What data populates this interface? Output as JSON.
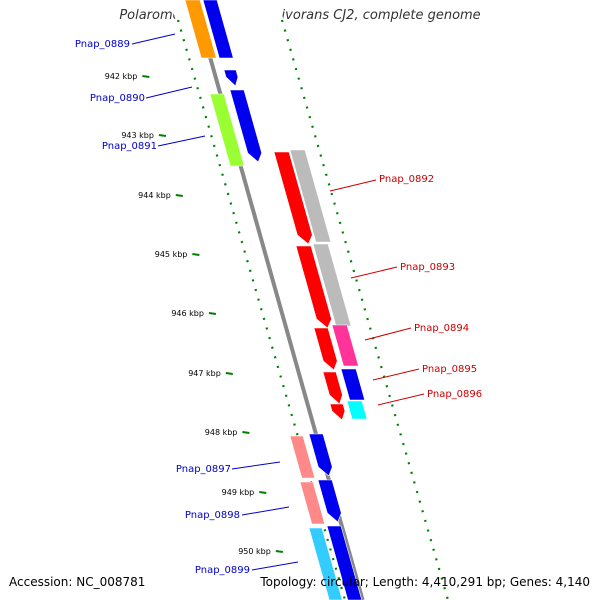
{
  "title": "Polaromonas naphthalenivorans CJ2, complete genome",
  "accession": "Accession: NC_008781",
  "topology": "Topology: circular; Length: 4,410,291 bp; Genes: 4,140",
  "ticks": [
    "942 kbp",
    "943 kbp",
    "944 kbp",
    "945 kbp",
    "946 kbp",
    "947 kbp",
    "948 kbp",
    "949 kbp",
    "950 kbp"
  ],
  "genes_left": [
    {
      "label": "Pnap_0889"
    },
    {
      "label": "Pnap_0890"
    },
    {
      "label": "Pnap_0891"
    },
    {
      "label": "Pnap_0897"
    },
    {
      "label": "Pnap_0898"
    },
    {
      "label": "Pnap_0899"
    }
  ],
  "genes_right": [
    {
      "label": "Pnap_0892"
    },
    {
      "label": "Pnap_0893"
    },
    {
      "label": "Pnap_0894"
    },
    {
      "label": "Pnap_0895"
    },
    {
      "label": "Pnap_0896"
    }
  ],
  "colors": {
    "left_label": "#0000cc",
    "right_label": "#cc0000",
    "tick": "#008000",
    "backbone": "#888888",
    "orange": "#ff9900",
    "blue": "#0000ee",
    "lime": "#99ff33",
    "red": "#ff0000",
    "gray": "#bbbbbb",
    "pink": "#ff3399",
    "cyan": "#00ffff",
    "salmon": "#ff8888",
    "skyblue": "#33ccff"
  }
}
